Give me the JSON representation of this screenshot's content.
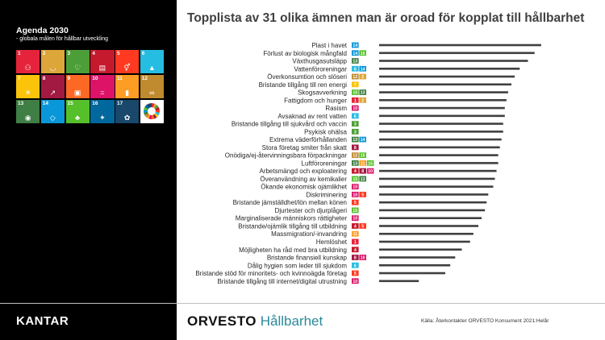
{
  "sidebar": {
    "title": "Agenda 2030",
    "subtitle": "- globala målen för hållbar utveckling",
    "goals": [
      {
        "num": "1",
        "color": "#e5243b",
        "icon": "family-icon"
      },
      {
        "num": "2",
        "color": "#dda63a",
        "icon": "bowl-icon"
      },
      {
        "num": "3",
        "color": "#4c9f38",
        "icon": "heartbeat-icon"
      },
      {
        "num": "4",
        "color": "#c5192d",
        "icon": "book-icon"
      },
      {
        "num": "5",
        "color": "#ff3a21",
        "icon": "gender-icon"
      },
      {
        "num": "6",
        "color": "#26bde2",
        "icon": "water-drop-icon"
      },
      {
        "num": "7",
        "color": "#fcc30b",
        "icon": "sun-icon"
      },
      {
        "num": "8",
        "color": "#a21942",
        "icon": "growth-chart-icon"
      },
      {
        "num": "9",
        "color": "#fd6925",
        "icon": "cubes-icon"
      },
      {
        "num": "10",
        "color": "#dd1367",
        "icon": "equal-icon"
      },
      {
        "num": "11",
        "color": "#fd9d24",
        "icon": "buildings-icon"
      },
      {
        "num": "12",
        "color": "#bf8b2e",
        "icon": "infinity-icon"
      },
      {
        "num": "13",
        "color": "#3f7e44",
        "icon": "eye-globe-icon"
      },
      {
        "num": "14",
        "color": "#0a97d9",
        "icon": "fish-icon"
      },
      {
        "num": "15",
        "color": "#56c02b",
        "icon": "tree-icon"
      },
      {
        "num": "16",
        "color": "#00689d",
        "icon": "dove-icon"
      },
      {
        "num": "17",
        "color": "#19486a",
        "icon": "flower-icon"
      }
    ],
    "brand": "KANTAR"
  },
  "footer": {
    "logo_part1": "ORVESTO",
    "logo_part2": "Hållbarhet",
    "source": "Källa: Återkontakter ORVESTO Konsument 2021:Helår"
  },
  "sdg_colors": {
    "1": "#e5243b",
    "2": "#dda63a",
    "3": "#4c9f38",
    "4": "#c5192d",
    "5": "#ff3a21",
    "6": "#26bde2",
    "7": "#fcc30b",
    "8": "#a21942",
    "9": "#fd6925",
    "10": "#dd1367",
    "11": "#fd9d24",
    "12": "#bf8b2e",
    "13": "#3f7e44",
    "14": "#0a97d9",
    "15": "#56c02b",
    "16": "#00689d"
  },
  "chart_data": {
    "type": "bar",
    "orientation": "horizontal",
    "title": "Topplista av 31 olika ämnen man är oroad för kopplat till hållbarhet",
    "xlabel": "",
    "ylabel": "",
    "xlim": [
      0,
      100
    ],
    "bar_color": "#404040",
    "categories": [
      "Plast i havet",
      "Förlust av biologisk mångfald",
      "Växthusgasutsläpp",
      "Vattenföroreningar",
      "Överkonsumtion och slöseri",
      "Bristande tillgång till ren energi",
      "Skogsavverkning",
      "Fattigdom och hunger",
      "Rasism",
      "Avsaknad av rent vatten",
      "Bristande tillgång till sjukvård och vaccin",
      "Psykisk ohälsa",
      "Extrema väderförhållanden",
      "Stora företag smiter från skatt",
      "Onödiga/ej-återvinningsbara förpackningar",
      "Luftföroreningar",
      "Arbetsmängd och exploatering",
      "Överanvändning av kemikalier",
      "Ökande ekonomisk ojämlikhet",
      "Diskriminering",
      "Bristande jämställdhet/lön mellan könen",
      "Djurtester och djurplågeri",
      "Marginaliserade människors rättigheter",
      "Bristande/ojämlik tillgång till utbildning",
      "Massmigration/-invandring",
      "Hemlöshet",
      "Möjligheten ha råd med bra utbildning",
      "Bristande finansiell kunskap",
      "Dålig hygien som leder till sjukdom",
      "Bristande stöd för minoritets- och kvinnoägda företag",
      "Bristande tillgång till internet/digital utrustning"
    ],
    "values": [
      98,
      94,
      90,
      85,
      82,
      80,
      78,
      77,
      76,
      76,
      75,
      75,
      74,
      73,
      72,
      72,
      71,
      70,
      69,
      66,
      65,
      64,
      62,
      60,
      57,
      55,
      50,
      46,
      43,
      40,
      24
    ],
    "sdg_tags": [
      [
        "14"
      ],
      [
        "14",
        "15"
      ],
      [
        "13"
      ],
      [
        "6",
        "14"
      ],
      [
        "12",
        "2"
      ],
      [
        "7"
      ],
      [
        "15",
        "13"
      ],
      [
        "1",
        "2"
      ],
      [
        "10"
      ],
      [
        "6"
      ],
      [
        "3"
      ],
      [
        "3"
      ],
      [
        "13",
        "14"
      ],
      [
        "8"
      ],
      [
        "12",
        "15"
      ],
      [
        "13",
        "11",
        "15"
      ],
      [
        "4",
        "8",
        "10"
      ],
      [
        "15",
        "13"
      ],
      [
        "10"
      ],
      [
        "10",
        "5"
      ],
      [
        "5"
      ],
      [
        "15"
      ],
      [
        "10"
      ],
      [
        "4",
        "5"
      ],
      [
        "11"
      ],
      [
        "1"
      ],
      [
        "4"
      ],
      [
        "8",
        "10"
      ],
      [
        "6"
      ],
      [
        "5"
      ],
      [
        "10"
      ]
    ]
  }
}
